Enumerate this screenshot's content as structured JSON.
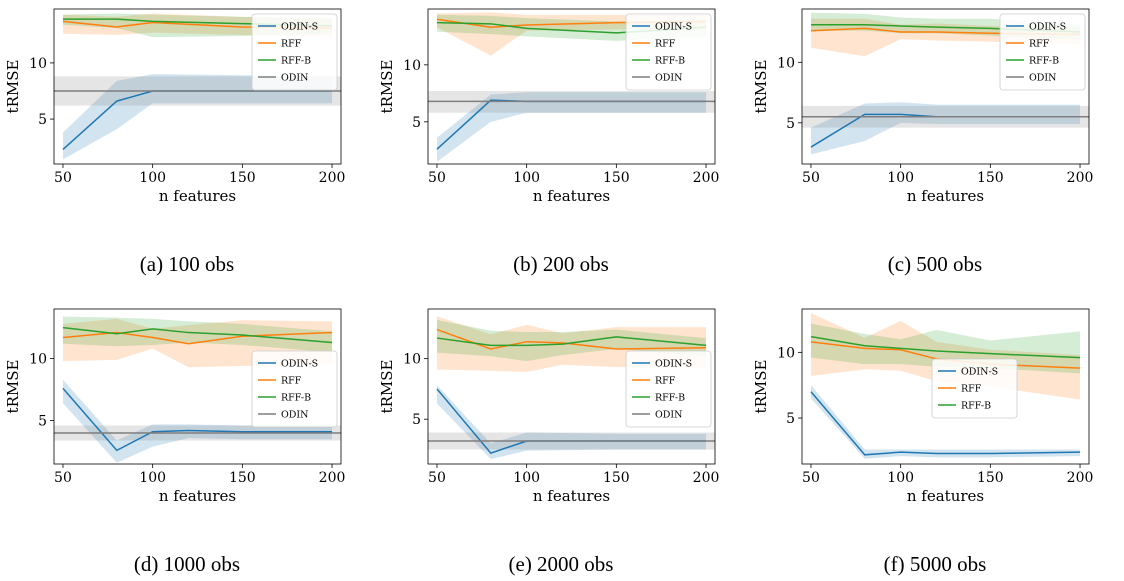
{
  "colors": {
    "ODIN-S": "#1f77b4",
    "RFF": "#ff7f0e",
    "RFF-B": "#2ca02c",
    "ODIN": "#7f7f7f"
  },
  "chart_data": [
    {
      "type": "line",
      "caption": "(a) 100 obs",
      "xlabel": "n features",
      "ylabel": "tRMSE",
      "xlim": [
        45,
        205
      ],
      "ylim": [
        1.0,
        14.8
      ],
      "xticks": [
        50,
        100,
        150,
        200
      ],
      "yticks": [
        5,
        10
      ],
      "legend": {
        "position": "top-right",
        "entries": [
          "ODIN-S",
          "RFF",
          "RFF-B",
          "ODIN"
        ]
      },
      "series": [
        {
          "name": "ODIN-S",
          "x": [
            50,
            80,
            100,
            200
          ],
          "y": [
            2.3,
            6.6,
            7.5,
            7.5
          ],
          "low": [
            1.4,
            4.1,
            6.4,
            6.4
          ],
          "high": [
            3.8,
            8.4,
            9.0,
            8.8
          ]
        },
        {
          "name": "RFF",
          "x": [
            50,
            80,
            100,
            150,
            200
          ],
          "y": [
            13.7,
            13.2,
            13.6,
            13.2,
            13.1
          ],
          "low": [
            12.6,
            12.5,
            12.7,
            12.5,
            12.3
          ],
          "high": [
            14.3,
            14.1,
            14.4,
            14.1,
            14.0
          ]
        },
        {
          "name": "RFF-B",
          "x": [
            50,
            80,
            100,
            150,
            200
          ],
          "y": [
            13.9,
            13.9,
            13.7,
            13.5,
            13.3
          ],
          "low": [
            13.4,
            13.1,
            12.3,
            12.4,
            12.6
          ],
          "high": [
            14.3,
            14.4,
            14.3,
            14.1,
            13.9
          ]
        },
        {
          "name": "ODIN",
          "x": [
            45,
            205
          ],
          "y": [
            7.5,
            7.5
          ],
          "low": [
            6.2,
            6.2
          ],
          "high": [
            8.8,
            8.8
          ]
        }
      ]
    },
    {
      "type": "line",
      "caption": "(b) 200 obs",
      "xlabel": "n features",
      "ylabel": "tRMSE",
      "xlim": [
        45,
        205
      ],
      "ylim": [
        1.3,
        14.9
      ],
      "xticks": [
        50,
        100,
        150,
        200
      ],
      "yticks": [
        5,
        10
      ],
      "legend": {
        "position": "top-right",
        "entries": [
          "ODIN-S",
          "RFF",
          "RFF-B",
          "ODIN"
        ]
      },
      "series": [
        {
          "name": "ODIN-S",
          "x": [
            50,
            80,
            100,
            200
          ],
          "y": [
            2.6,
            6.9,
            6.8,
            6.8
          ],
          "low": [
            1.5,
            5.0,
            5.8,
            5.8
          ],
          "high": [
            3.6,
            7.4,
            7.6,
            7.6
          ]
        },
        {
          "name": "RFF",
          "x": [
            50,
            80,
            100,
            150,
            200
          ],
          "y": [
            14.0,
            13.3,
            13.5,
            13.7,
            13.8
          ],
          "low": [
            13.3,
            10.8,
            13.0,
            13.1,
            13.2
          ],
          "high": [
            14.5,
            14.6,
            14.4,
            14.4,
            14.4
          ]
        },
        {
          "name": "RFF-B",
          "x": [
            50,
            80,
            100,
            150,
            200
          ],
          "y": [
            13.7,
            13.6,
            13.2,
            12.8,
            13.3
          ],
          "low": [
            12.9,
            12.7,
            12.5,
            12.1,
            12.5
          ],
          "high": [
            14.4,
            14.3,
            14.1,
            13.8,
            14.0
          ]
        },
        {
          "name": "ODIN",
          "x": [
            45,
            205
          ],
          "y": [
            6.8,
            6.8
          ],
          "low": [
            5.8,
            5.8
          ],
          "high": [
            7.7,
            7.7
          ]
        }
      ]
    },
    {
      "type": "line",
      "caption": "(c) 500 obs",
      "xlabel": "n features",
      "ylabel": "tRMSE",
      "xlim": [
        45,
        205
      ],
      "ylim": [
        1.6,
        14.4
      ],
      "xticks": [
        50,
        100,
        150,
        200
      ],
      "yticks": [
        5,
        10
      ],
      "legend": {
        "position": "top-right",
        "entries": [
          "ODIN-S",
          "RFF",
          "RFF-B",
          "ODIN"
        ]
      },
      "series": [
        {
          "name": "ODIN-S",
          "x": [
            50,
            80,
            100,
            120,
            200
          ],
          "y": [
            3.0,
            5.7,
            5.7,
            5.5,
            5.5
          ],
          "low": [
            2.4,
            3.5,
            5.0,
            4.9,
            4.9
          ],
          "high": [
            4.6,
            6.6,
            6.7,
            6.5,
            6.5
          ]
        },
        {
          "name": "RFF",
          "x": [
            50,
            80,
            100,
            120,
            150,
            200
          ],
          "y": [
            12.6,
            12.8,
            12.5,
            12.5,
            12.4,
            12.3
          ],
          "low": [
            11.2,
            10.5,
            11.9,
            11.8,
            11.7,
            11.5
          ],
          "high": [
            13.6,
            13.6,
            13.1,
            13.2,
            13.0,
            12.9
          ]
        },
        {
          "name": "RFF-B",
          "x": [
            50,
            80,
            100,
            120,
            150,
            200
          ],
          "y": [
            13.1,
            13.1,
            13.0,
            12.9,
            12.8,
            12.5
          ],
          "low": [
            12.6,
            12.6,
            12.4,
            12.4,
            12.2,
            11.9
          ],
          "high": [
            14.1,
            14.0,
            13.7,
            13.6,
            13.6,
            13.1
          ]
        },
        {
          "name": "ODIN",
          "x": [
            45,
            205
          ],
          "y": [
            5.5,
            5.5
          ],
          "low": [
            4.6,
            4.6
          ],
          "high": [
            6.4,
            6.4
          ]
        }
      ]
    },
    {
      "type": "line",
      "caption": "(d) 1000 obs",
      "xlabel": "n features",
      "ylabel": "tRMSE",
      "xlim": [
        45,
        205
      ],
      "ylim": [
        1.5,
        14.0
      ],
      "xticks": [
        50,
        100,
        150,
        200
      ],
      "yticks": [
        5,
        10
      ],
      "legend": {
        "position": "center-right",
        "entries": [
          "ODIN-S",
          "RFF",
          "RFF-B",
          "ODIN"
        ]
      },
      "series": [
        {
          "name": "ODIN-S",
          "x": [
            50,
            80,
            100,
            120,
            150,
            200
          ],
          "y": [
            7.6,
            2.6,
            4.1,
            4.2,
            4.1,
            4.1
          ],
          "low": [
            6.4,
            1.6,
            2.9,
            3.6,
            3.5,
            3.5
          ],
          "high": [
            8.3,
            3.4,
            4.7,
            4.7,
            4.6,
            4.6
          ]
        },
        {
          "name": "RFF",
          "x": [
            50,
            80,
            100,
            120,
            150,
            200
          ],
          "y": [
            11.7,
            12.1,
            11.7,
            11.2,
            11.8,
            12.1
          ],
          "low": [
            9.8,
            9.9,
            10.8,
            9.3,
            9.4,
            9.5
          ],
          "high": [
            12.8,
            13.2,
            12.4,
            12.7,
            13.1,
            13.0
          ]
        },
        {
          "name": "RFF-B",
          "x": [
            50,
            80,
            100,
            120,
            150,
            200
          ],
          "y": [
            12.5,
            12.0,
            12.4,
            12.1,
            11.9,
            11.3
          ],
          "low": [
            11.2,
            11.0,
            11.1,
            11.3,
            11.1,
            10.5
          ],
          "high": [
            13.4,
            13.3,
            13.2,
            13.0,
            12.8,
            12.2
          ]
        },
        {
          "name": "ODIN",
          "x": [
            45,
            205
          ],
          "y": [
            4.0,
            4.0
          ],
          "low": [
            3.4,
            3.4
          ],
          "high": [
            4.6,
            4.6
          ]
        }
      ]
    },
    {
      "type": "line",
      "caption": "(e) 2000 obs",
      "xlabel": "n features",
      "ylabel": "tRMSE",
      "xlim": [
        45,
        205
      ],
      "ylim": [
        1.3,
        14.1
      ],
      "xticks": [
        50,
        100,
        150,
        200
      ],
      "yticks": [
        5,
        10
      ],
      "legend": {
        "position": "center-right",
        "entries": [
          "ODIN-S",
          "RFF",
          "RFF-B",
          "ODIN"
        ]
      },
      "series": [
        {
          "name": "ODIN-S",
          "x": [
            50,
            80,
            100,
            150,
            200
          ],
          "y": [
            7.5,
            2.2,
            3.2,
            3.2,
            3.2
          ],
          "low": [
            6.3,
            1.7,
            2.4,
            2.5,
            2.5
          ],
          "high": [
            7.8,
            3.0,
            3.9,
            3.8,
            3.8
          ]
        },
        {
          "name": "RFF",
          "x": [
            50,
            80,
            100,
            120,
            150,
            200
          ],
          "y": [
            12.4,
            10.8,
            11.4,
            11.3,
            10.8,
            10.9
          ],
          "low": [
            9.1,
            9.0,
            8.9,
            9.5,
            9.3,
            9.3
          ],
          "high": [
            13.5,
            12.0,
            12.8,
            12.1,
            12.6,
            12.6
          ]
        },
        {
          "name": "RFF-B",
          "x": [
            50,
            80,
            100,
            120,
            150,
            200
          ],
          "y": [
            11.7,
            11.1,
            11.1,
            11.2,
            11.8,
            11.1
          ],
          "low": [
            10.5,
            10.2,
            9.8,
            10.3,
            10.8,
            10.2
          ],
          "high": [
            13.2,
            12.3,
            12.2,
            12.2,
            12.4,
            11.7
          ]
        },
        {
          "name": "ODIN",
          "x": [
            45,
            205
          ],
          "y": [
            3.2,
            3.2
          ],
          "low": [
            2.5,
            2.5
          ],
          "high": [
            3.9,
            3.9
          ]
        }
      ]
    },
    {
      "type": "line",
      "caption": "(f) 5000 obs",
      "xlabel": "n features",
      "ylabel": "tRMSE",
      "xlim": [
        45,
        205
      ],
      "ylim": [
        1.5,
        13.3
      ],
      "xticks": [
        50,
        100,
        150,
        200
      ],
      "yticks": [
        5,
        10
      ],
      "legend": {
        "position": "center",
        "entries": [
          "ODIN-S",
          "RFF",
          "RFF-B"
        ]
      },
      "series": [
        {
          "name": "ODIN-S",
          "x": [
            50,
            80,
            100,
            120,
            150,
            200
          ],
          "y": [
            7.0,
            2.2,
            2.4,
            2.3,
            2.3,
            2.4
          ],
          "low": [
            6.5,
            1.9,
            2.1,
            2.0,
            2.0,
            2.1
          ],
          "high": [
            7.5,
            2.6,
            2.6,
            2.6,
            2.6,
            2.6
          ]
        },
        {
          "name": "RFF",
          "x": [
            50,
            80,
            100,
            120,
            150,
            200
          ],
          "y": [
            10.8,
            10.3,
            10.2,
            9.5,
            9.1,
            8.8
          ],
          "low": [
            8.2,
            8.7,
            8.6,
            7.8,
            7.4,
            6.4
          ],
          "high": [
            13.0,
            11.1,
            12.4,
            10.8,
            10.2,
            9.8
          ]
        },
        {
          "name": "RFF-B",
          "x": [
            50,
            80,
            100,
            120,
            150,
            200
          ],
          "y": [
            11.2,
            10.5,
            10.3,
            10.1,
            9.9,
            9.6
          ],
          "low": [
            9.6,
            9.1,
            9.1,
            8.9,
            8.8,
            8.4
          ],
          "high": [
            12.2,
            11.4,
            11.0,
            11.7,
            10.9,
            11.6
          ]
        }
      ]
    }
  ]
}
